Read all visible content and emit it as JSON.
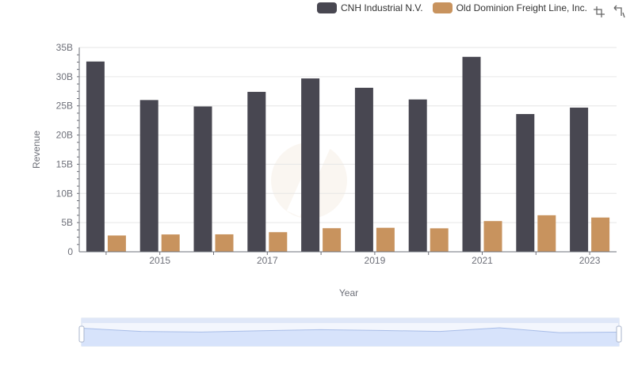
{
  "colors": {
    "cnh": "#484751",
    "odfl": "#c8935e",
    "grid": "#e6e6e6",
    "axis": "#6e7079",
    "zoom_fill": "#d7e3fb",
    "zoom_line": "#a8bde8"
  },
  "toolbox": {
    "zoom_icon": "zoom-icon",
    "reset_icon": "restore-icon"
  },
  "chart_data": {
    "type": "bar",
    "title": "",
    "xlabel": "Year",
    "ylabel": "Revenue",
    "ylim": [
      0,
      35000000000
    ],
    "yticks": [
      "0",
      "5B",
      "10B",
      "15B",
      "20B",
      "25B",
      "30B",
      "35B"
    ],
    "categories": [
      "2014",
      "2015",
      "2016",
      "2017",
      "2018",
      "2019",
      "2020",
      "2021",
      "2022",
      "2023"
    ],
    "xtick_labels": [
      "2015",
      "2017",
      "2019",
      "2021",
      "2023"
    ],
    "legend_position": "top-right",
    "grid": true,
    "series": [
      {
        "name": "CNH Industrial N.V.",
        "values": [
          32600000000,
          26000000000,
          24900000000,
          27400000000,
          29700000000,
          28100000000,
          26100000000,
          33400000000,
          23600000000,
          24700000000
        ]
      },
      {
        "name": "Old Dominion Freight Line, Inc.",
        "values": [
          2790000000,
          2970000000,
          2990000000,
          3360000000,
          4040000000,
          4110000000,
          4020000000,
          5260000000,
          6260000000,
          5870000000
        ]
      }
    ]
  }
}
